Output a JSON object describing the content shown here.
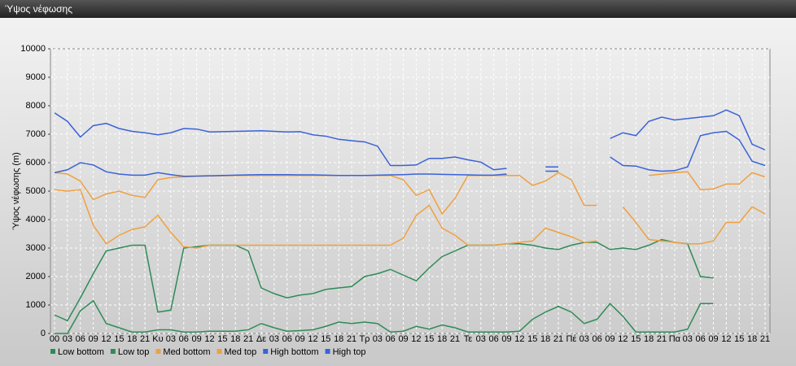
{
  "window_title": "Ύψος νέφωσης",
  "chart_data": {
    "type": "line",
    "ylabel": "Ύψος νέφωσης (m)",
    "categories": [
      "00",
      "03",
      "06",
      "09",
      "12",
      "15",
      "18",
      "21",
      "Κυ",
      "03",
      "06",
      "09",
      "12",
      "15",
      "18",
      "21",
      "Δε",
      "03",
      "06",
      "09",
      "12",
      "15",
      "18",
      "21",
      "Τρ",
      "03",
      "06",
      "09",
      "12",
      "15",
      "18",
      "21",
      "Τε",
      "03",
      "06",
      "09",
      "12",
      "15",
      "18",
      "21",
      "Πέ",
      "03",
      "06",
      "09",
      "12",
      "15",
      "18",
      "21",
      "Πα",
      "03",
      "06",
      "09",
      "12",
      "15",
      "18",
      "21"
    ],
    "ylim": [
      0,
      10000
    ],
    "yticks": [
      0,
      1000,
      2000,
      3000,
      4000,
      5000,
      6000,
      7000,
      8000,
      9000,
      10000
    ],
    "grid": true,
    "series": [
      {
        "name": "Low bottom",
        "color": "#2e8b57",
        "values": [
          0,
          0,
          800,
          1150,
          350,
          200,
          50,
          50,
          130,
          130,
          50,
          50,
          80,
          80,
          80,
          130,
          350,
          200,
          80,
          100,
          130,
          250,
          400,
          350,
          400,
          350,
          50,
          80,
          250,
          150,
          300,
          200,
          50,
          50,
          50,
          50,
          80,
          500,
          750,
          950,
          750,
          350,
          500,
          1050,
          600,
          50,
          50,
          50,
          50,
          150,
          1050,
          1050,
          null,
          null,
          null,
          null
        ]
      },
      {
        "name": "Low top",
        "color": "#2e8b57",
        "values": [
          650,
          450,
          1250,
          2100,
          2900,
          3000,
          3100,
          3100,
          750,
          820,
          3000,
          3050,
          3100,
          3100,
          3100,
          2900,
          1600,
          1400,
          1250,
          1350,
          1400,
          1550,
          1600,
          1650,
          2000,
          2100,
          2250,
          2050,
          1850,
          2300,
          2700,
          2900,
          3100,
          3100,
          3100,
          3150,
          3150,
          3100,
          3000,
          2950,
          3100,
          3200,
          3200,
          2950,
          3000,
          2950,
          3100,
          3300,
          3200,
          3150,
          2000,
          1950,
          null,
          null,
          null,
          null
        ]
      },
      {
        "name": "Med bottom",
        "color": "#f0a040",
        "values": [
          5050,
          5000,
          5050,
          3800,
          3150,
          3450,
          3650,
          3750,
          4150,
          3550,
          3050,
          3000,
          3100,
          3100,
          3100,
          3100,
          3100,
          3100,
          3100,
          3100,
          3100,
          3100,
          3100,
          3100,
          3100,
          3100,
          3100,
          3350,
          4150,
          4500,
          3700,
          3450,
          3100,
          3100,
          3100,
          3150,
          3200,
          3250,
          3700,
          3550,
          3400,
          3200,
          3250,
          null,
          4450,
          3900,
          3300,
          3250,
          3200,
          3150,
          3150,
          3250,
          3900,
          3900,
          4450,
          4200
        ]
      },
      {
        "name": "Med top",
        "color": "#f0a040",
        "values": [
          5650,
          5600,
          5350,
          4700,
          4900,
          5000,
          4850,
          4780,
          5400,
          5480,
          5500,
          5520,
          5530,
          5540,
          5550,
          5550,
          5550,
          5550,
          5550,
          5550,
          5550,
          5550,
          5550,
          5550,
          5550,
          5550,
          5550,
          5400,
          4850,
          5050,
          4200,
          4750,
          5550,
          5550,
          5550,
          5550,
          5550,
          5200,
          5350,
          5650,
          5400,
          4500,
          4500,
          null,
          null,
          null,
          5550,
          5600,
          5650,
          5680,
          5050,
          5080,
          5250,
          5250,
          5650,
          5500
        ]
      },
      {
        "name": "High bottom",
        "color": "#3a62d8",
        "values": [
          5650,
          5750,
          6000,
          5920,
          5680,
          5600,
          5560,
          5560,
          5650,
          5580,
          5520,
          5530,
          5540,
          5550,
          5560,
          5570,
          5580,
          5580,
          5580,
          5570,
          5570,
          5560,
          5550,
          5550,
          5550,
          5560,
          5570,
          5580,
          5600,
          5600,
          5590,
          5580,
          5570,
          5560,
          5560,
          5600,
          null,
          null,
          5700,
          5700,
          null,
          null,
          null,
          6200,
          5900,
          5880,
          5750,
          5700,
          5720,
          5850,
          6950,
          7050,
          7100,
          6800,
          6050,
          5900
        ]
      },
      {
        "name": "High top",
        "color": "#3a62d8",
        "values": [
          7750,
          7450,
          6900,
          7300,
          7380,
          7200,
          7100,
          7050,
          6980,
          7050,
          7200,
          7180,
          7080,
          7090,
          7100,
          7110,
          7120,
          7100,
          7080,
          7090,
          6980,
          6930,
          6820,
          6770,
          6730,
          6580,
          5900,
          5900,
          5920,
          6150,
          6150,
          6200,
          6100,
          6020,
          5750,
          5800,
          null,
          null,
          5850,
          5850,
          null,
          null,
          null,
          6850,
          7050,
          6950,
          7450,
          7600,
          7500,
          7550,
          7600,
          7650,
          7850,
          7650,
          6650,
          6450
        ]
      }
    ]
  }
}
